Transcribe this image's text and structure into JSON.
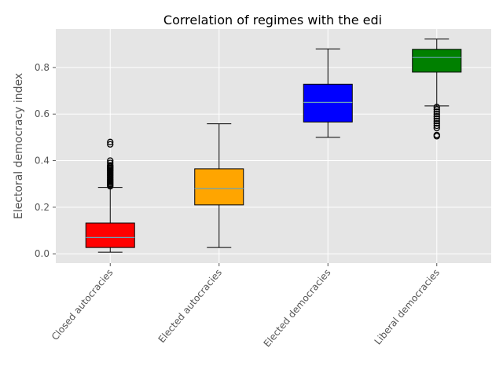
{
  "chart_data": {
    "type": "box",
    "title": "Correlation of regimes with the edi",
    "xlabel": "",
    "ylabel": "Electoral democracy index",
    "ylim": [
      -0.04,
      0.965
    ],
    "yticks": [
      "0.0",
      "0.2",
      "0.4",
      "0.6",
      "0.8"
    ],
    "grid": true,
    "categories": [
      "Closed autocracies",
      "Elected autocracies",
      "Elected democracies",
      "Liberal democracies"
    ],
    "series": [
      {
        "category": "Closed autocracies",
        "color": "#ff0000",
        "whisker_low": 0.007,
        "q1": 0.027,
        "median": 0.07,
        "q3": 0.132,
        "whisker_high": 0.285,
        "outliers": [
          0.29,
          0.295,
          0.3,
          0.305,
          0.31,
          0.315,
          0.32,
          0.325,
          0.33,
          0.335,
          0.34,
          0.345,
          0.35,
          0.355,
          0.36,
          0.365,
          0.37,
          0.375,
          0.38,
          0.39,
          0.4,
          0.47,
          0.48
        ]
      },
      {
        "category": "Elected autocracies",
        "color": "#ffa500",
        "whisker_low": 0.027,
        "q1": 0.21,
        "median": 0.28,
        "q3": 0.365,
        "whisker_high": 0.558,
        "outliers": []
      },
      {
        "category": "Elected democracies",
        "color": "#0000ff",
        "whisker_low": 0.5,
        "q1": 0.566,
        "median": 0.65,
        "q3": 0.728,
        "whisker_high": 0.88,
        "outliers": []
      },
      {
        "category": "Liberal democracies",
        "color": "#008000",
        "whisker_low": 0.635,
        "q1": 0.78,
        "median": 0.843,
        "q3": 0.878,
        "whisker_high": 0.922,
        "outliers": [
          0.505,
          0.51,
          0.54,
          0.55,
          0.56,
          0.57,
          0.58,
          0.59,
          0.6,
          0.61,
          0.62,
          0.63
        ]
      }
    ]
  }
}
